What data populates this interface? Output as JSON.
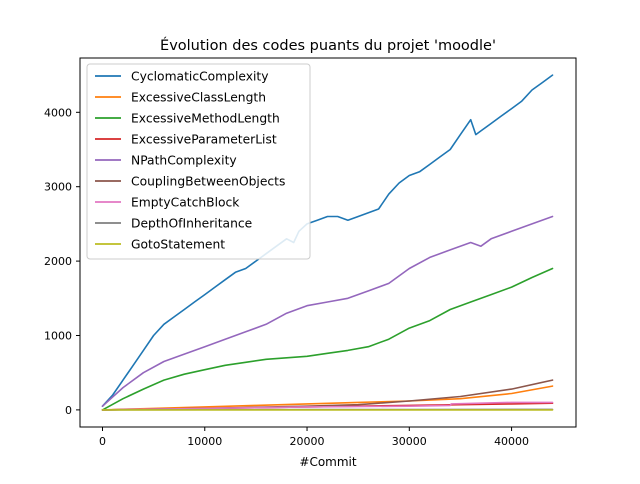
{
  "chart_data": {
    "type": "line",
    "title": "Évolution des codes puants du projet 'moodle'",
    "xlabel": "#Commit",
    "ylabel": "",
    "xlim": [
      -2200,
      46300
    ],
    "ylim": [
      -230,
      4730
    ],
    "xticks": [
      0,
      10000,
      20000,
      30000,
      40000
    ],
    "yticks": [
      0,
      1000,
      2000,
      3000,
      4000
    ],
    "legend_position": "upper-left",
    "grid": false,
    "series": [
      {
        "name": "CyclomaticComplexity",
        "color": "#1f77b4",
        "x": [
          0,
          1000,
          2000,
          3000,
          4000,
          5000,
          6000,
          7000,
          8000,
          9000,
          10000,
          11000,
          12000,
          13000,
          14000,
          15000,
          16000,
          17000,
          18000,
          18700,
          19200,
          20000,
          21000,
          22000,
          23000,
          24000,
          25000,
          26000,
          27000,
          28000,
          29000,
          30000,
          31000,
          32000,
          33000,
          34000,
          35000,
          36000,
          36500,
          37000,
          38000,
          39000,
          40000,
          41000,
          42000,
          43000,
          44000
        ],
        "y": [
          50,
          200,
          400,
          600,
          800,
          1000,
          1150,
          1250,
          1350,
          1450,
          1550,
          1650,
          1750,
          1850,
          1900,
          2000,
          2100,
          2200,
          2300,
          2250,
          2400,
          2500,
          2550,
          2600,
          2600,
          2550,
          2600,
          2650,
          2700,
          2900,
          3050,
          3150,
          3200,
          3300,
          3400,
          3500,
          3700,
          3900,
          3700,
          3750,
          3850,
          3950,
          4050,
          4150,
          4300,
          4400,
          4500
        ]
      },
      {
        "name": "ExcessiveClassLength",
        "color": "#ff7f0e",
        "x": [
          0,
          5000,
          10000,
          15000,
          20000,
          25000,
          30000,
          35000,
          40000,
          44000
        ],
        "y": [
          0,
          20,
          40,
          60,
          80,
          100,
          120,
          150,
          220,
          320
        ]
      },
      {
        "name": "ExcessiveMethodLength",
        "color": "#2ca02c",
        "x": [
          0,
          2000,
          4000,
          6000,
          8000,
          10000,
          12000,
          14000,
          16000,
          18000,
          20000,
          22000,
          24000,
          26000,
          28000,
          30000,
          32000,
          34000,
          36000,
          38000,
          40000,
          42000,
          44000
        ],
        "y": [
          0,
          150,
          280,
          400,
          480,
          540,
          600,
          640,
          680,
          700,
          720,
          760,
          800,
          850,
          950,
          1100,
          1200,
          1350,
          1450,
          1550,
          1650,
          1780,
          1900
        ]
      },
      {
        "name": "ExcessiveParameterList",
        "color": "#d62728",
        "x": [
          0,
          10000,
          20000,
          30000,
          40000,
          44000
        ],
        "y": [
          0,
          20,
          40,
          60,
          80,
          90
        ]
      },
      {
        "name": "NPathComplexity",
        "color": "#9467bd",
        "x": [
          0,
          2000,
          4000,
          6000,
          8000,
          10000,
          12000,
          14000,
          16000,
          18000,
          19000,
          20000,
          22000,
          24000,
          26000,
          28000,
          30000,
          32000,
          34000,
          36000,
          37000,
          38000,
          40000,
          42000,
          44000
        ],
        "y": [
          50,
          300,
          500,
          650,
          750,
          850,
          950,
          1050,
          1150,
          1300,
          1350,
          1400,
          1450,
          1500,
          1600,
          1700,
          1900,
          2050,
          2150,
          2250,
          2200,
          2300,
          2400,
          2500,
          2600
        ]
      },
      {
        "name": "CouplingBetweenObjects",
        "color": "#8c564b",
        "x": [
          0,
          10000,
          20000,
          25000,
          30000,
          35000,
          40000,
          44000
        ],
        "y": [
          0,
          20,
          50,
          70,
          120,
          180,
          280,
          400
        ]
      },
      {
        "name": "EmptyCatchBlock",
        "color": "#e377c2",
        "x": [
          0,
          10000,
          20000,
          30000,
          34000,
          34100,
          40000,
          44000
        ],
        "y": [
          0,
          20,
          40,
          50,
          60,
          80,
          100,
          100
        ]
      },
      {
        "name": "DepthOfInheritance",
        "color": "#7f7f7f",
        "x": [
          0,
          10000,
          20000,
          30000,
          40000,
          44000
        ],
        "y": [
          0,
          2,
          4,
          5,
          6,
          6
        ]
      },
      {
        "name": "GotoStatement",
        "color": "#bcbd22",
        "x": [
          0,
          10000,
          20000,
          30000,
          40000,
          44000
        ],
        "y": [
          0,
          0,
          0,
          0,
          0,
          0
        ]
      }
    ]
  }
}
